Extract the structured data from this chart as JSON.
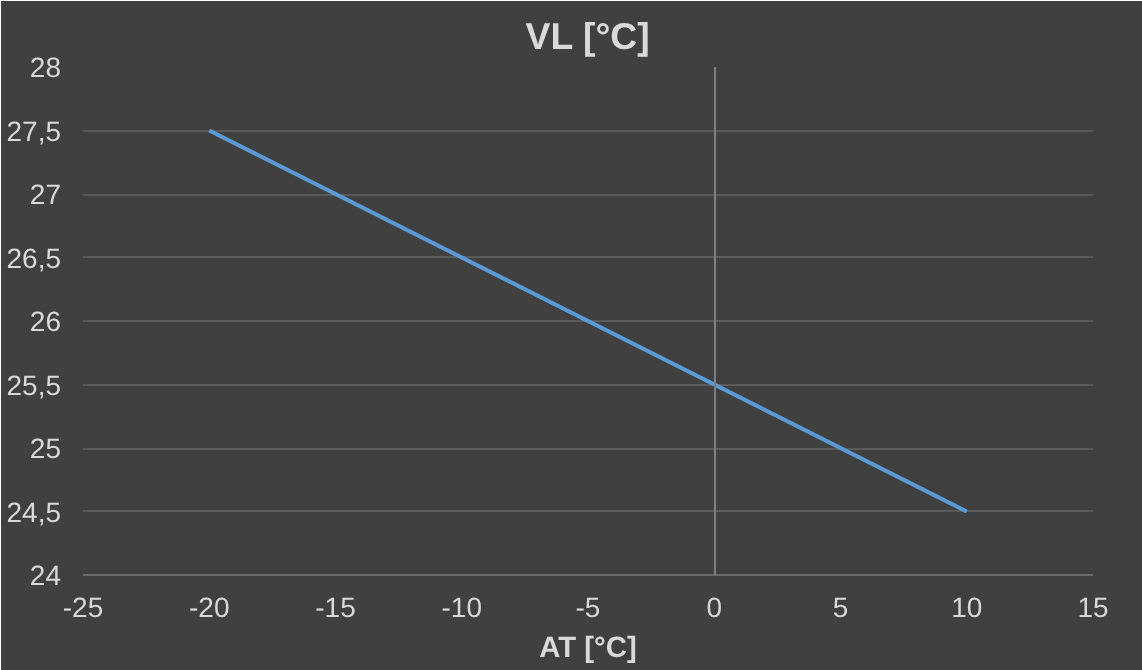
{
  "chart_data": {
    "type": "line",
    "title": "VL [°C]",
    "xlabel": "AT [°C]",
    "x": [
      -20,
      10
    ],
    "series": [
      {
        "color": "#5b9bd5",
        "values": [
          27.5,
          24.5
        ]
      }
    ],
    "xlim": [
      -25,
      15
    ],
    "xticks": [
      -25,
      -20,
      -15,
      -10,
      -5,
      0,
      5,
      10,
      15
    ],
    "ylim": [
      24,
      28
    ],
    "yticks": [
      24,
      {
        "value": 24.5,
        "label": "24,5"
      },
      25,
      {
        "value": 25.5,
        "label": "25,5"
      },
      26,
      {
        "value": 26.5,
        "label": "26,5"
      },
      27,
      {
        "value": 27.5,
        "label": "27,5"
      },
      28
    ],
    "grid": "y",
    "marker": "none",
    "line_style": "solid"
  }
}
